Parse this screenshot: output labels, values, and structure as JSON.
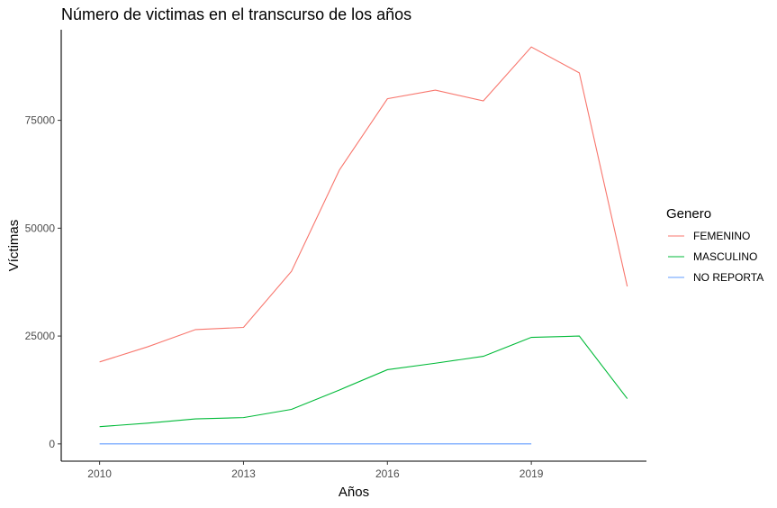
{
  "chart_data": {
    "type": "line",
    "title": "Número de victimas en el transcurso de los años",
    "xlabel": "Años",
    "ylabel": "Víctimas",
    "x": [
      2010,
      2011,
      2012,
      2013,
      2014,
      2015,
      2016,
      2017,
      2018,
      2019,
      2020,
      2021
    ],
    "xlim": [
      2009.2,
      2021.4
    ],
    "ylim": [
      -4000,
      96000
    ],
    "x_ticks": [
      2010,
      2013,
      2016,
      2019
    ],
    "y_ticks": [
      0,
      25000,
      50000,
      75000
    ],
    "grid": false,
    "legend": {
      "title": "Genero",
      "position": "right"
    },
    "series": [
      {
        "name": "FEMENINO",
        "color": "#F8766D",
        "x": [
          2010,
          2011,
          2012,
          2013,
          2014,
          2015,
          2016,
          2017,
          2018,
          2019,
          2020,
          2021
        ],
        "values": [
          19000,
          22500,
          26500,
          27000,
          40000,
          63500,
          80000,
          82000,
          79500,
          92000,
          86000,
          36500
        ]
      },
      {
        "name": "MASCULINO",
        "color": "#00BA38",
        "x": [
          2010,
          2011,
          2012,
          2013,
          2014,
          2015,
          2016,
          2017,
          2018,
          2019,
          2020,
          2021
        ],
        "values": [
          4000,
          4800,
          5800,
          6100,
          8000,
          12500,
          17200,
          18700,
          20300,
          24700,
          25000,
          10500
        ]
      },
      {
        "name": "NO REPORTA",
        "color": "#619CFF",
        "x": [
          2010,
          2011,
          2012,
          2013,
          2014,
          2015,
          2016,
          2017,
          2018,
          2019
        ],
        "values": [
          0,
          0,
          0,
          0,
          0,
          0,
          0,
          0,
          0,
          0
        ]
      }
    ]
  }
}
